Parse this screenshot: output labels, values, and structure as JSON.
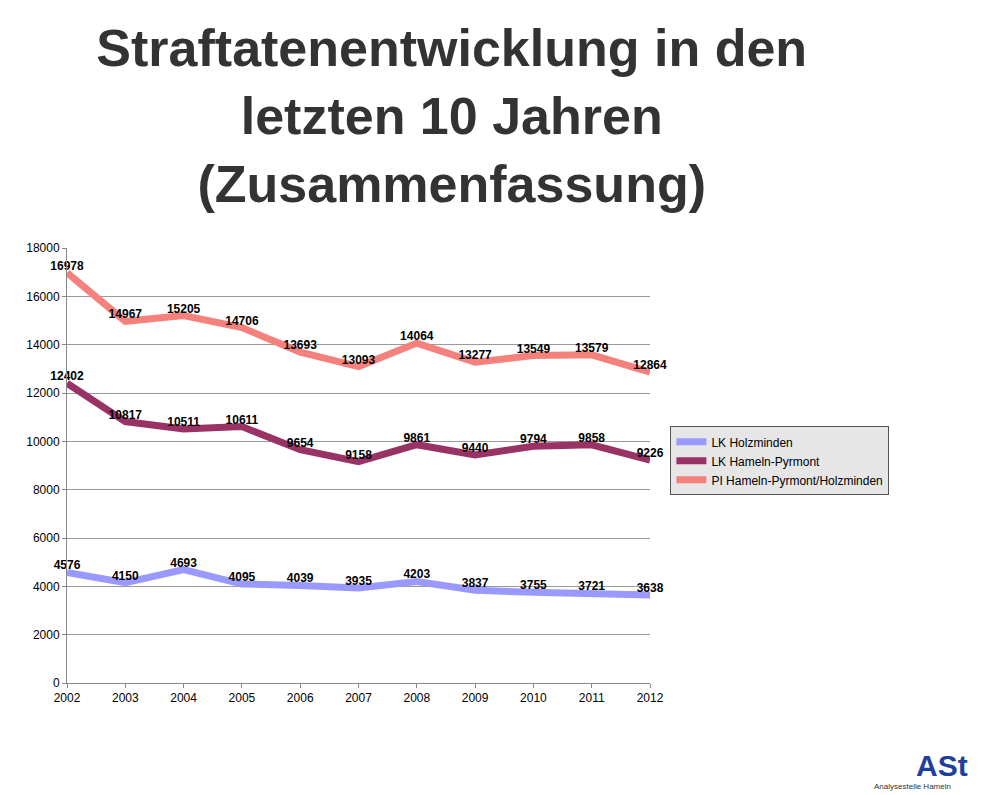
{
  "chart_data": {
    "type": "line",
    "title": "Straftatenentwicklung in den\nletzten 10 Jahren\n(Zusammenfassung)",
    "x": [
      2002,
      2003,
      2004,
      2005,
      2006,
      2007,
      2008,
      2009,
      2010,
      2011,
      2012
    ],
    "series": [
      {
        "name": "LK Holzminden",
        "color": "#9999ff",
        "values": [
          4576,
          4150,
          4693,
          4095,
          4039,
          3935,
          4203,
          3837,
          3755,
          3721,
          3638
        ]
      },
      {
        "name": "LK Hameln-Pyrmont",
        "color": "#993366",
        "values": [
          12402,
          10817,
          10511,
          10611,
          9654,
          9158,
          9861,
          9440,
          9794,
          9858,
          9226
        ]
      },
      {
        "name": "PI Hameln-Pyrmont/Holzminden",
        "color": "#f4817c",
        "values": [
          16978,
          14967,
          15205,
          14706,
          13693,
          13093,
          14064,
          13277,
          13549,
          13579,
          12864
        ]
      }
    ],
    "xlim": [
      2002,
      2012
    ],
    "xticks": [
      2002,
      2003,
      2004,
      2005,
      2006,
      2007,
      2008,
      2009,
      2010,
      2011,
      2012
    ],
    "ylim": [
      0,
      18000
    ],
    "yticks": [
      0,
      2000,
      4000,
      6000,
      8000,
      10000,
      12000,
      14000,
      16000,
      18000
    ],
    "grid": true,
    "legend": "right",
    "data_labels": true,
    "line_style": "solid",
    "annotations": [
      "ASt",
      "Analysestelle Hameln"
    ]
  }
}
